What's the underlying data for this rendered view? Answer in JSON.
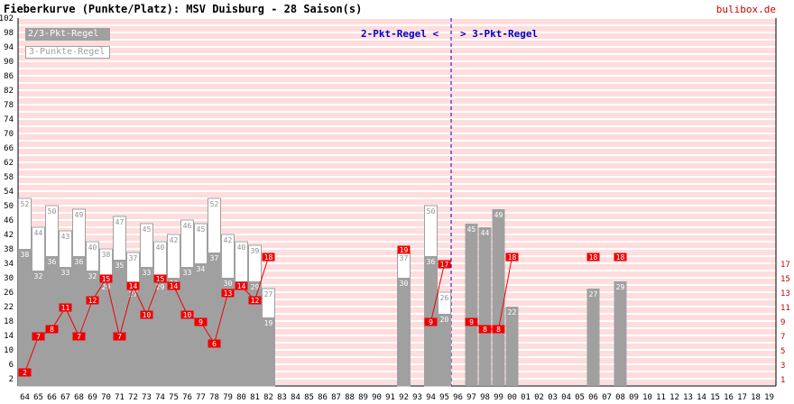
{
  "header": {
    "title": "Fieberkurve (Punkte/Platz): MSV Duisburg - 28 Saison(s)",
    "site": "bulibox.de"
  },
  "legend": {
    "pts23": "2/3-Pkt-Regel",
    "pts3": "3-Punkte-Regel"
  },
  "rule_labels": {
    "left": "2-Pkt-Regel <",
    "right": "> 3-Pkt-Regel"
  },
  "colors": {
    "bar_gray": "#a0a0a0",
    "place_red": "#ee0000",
    "rule_blue": "#0000cc",
    "stripe_pink": "#ffdddd"
  },
  "chart_data": {
    "type": "bar",
    "categories": [
      "64",
      "65",
      "66",
      "67",
      "68",
      "69",
      "70",
      "71",
      "72",
      "73",
      "74",
      "75",
      "76",
      "77",
      "78",
      "79",
      "80",
      "81",
      "82",
      "83",
      "84",
      "85",
      "86",
      "87",
      "88",
      "89",
      "90",
      "91",
      "92",
      "93",
      "94",
      "95",
      "96",
      "97",
      "98",
      "99",
      "00",
      "01",
      "02",
      "03",
      "04",
      "05",
      "06",
      "07",
      "08",
      "09",
      "10",
      "11",
      "12",
      "13",
      "14",
      "15",
      "16",
      "17",
      "18",
      "19"
    ],
    "series": [
      {
        "name": "2/3-Pkt-Regel",
        "values": [
          38,
          32,
          36,
          33,
          36,
          32,
          29,
          35,
          27,
          33,
          29,
          30,
          33,
          34,
          37,
          30,
          29,
          29,
          19,
          null,
          null,
          null,
          null,
          null,
          null,
          null,
          null,
          null,
          30,
          null,
          36,
          20,
          null,
          45,
          44,
          49,
          22,
          null,
          null,
          null,
          null,
          null,
          27,
          null,
          29,
          null,
          null,
          null,
          null,
          null,
          null,
          null,
          null,
          null,
          null,
          null
        ]
      },
      {
        "name": "3-Punkte-Regel",
        "values": [
          52,
          44,
          50,
          43,
          49,
          40,
          38,
          47,
          37,
          45,
          40,
          42,
          46,
          45,
          52,
          42,
          40,
          39,
          27,
          null,
          null,
          null,
          null,
          null,
          null,
          null,
          null,
          null,
          37,
          null,
          50,
          26,
          null,
          45,
          44,
          49,
          22,
          null,
          null,
          null,
          null,
          null,
          27,
          null,
          29,
          null,
          null,
          null,
          null,
          null,
          null,
          null,
          null,
          null,
          null,
          null
        ]
      }
    ],
    "places": [
      2,
      7,
      8,
      11,
      7,
      12,
      15,
      7,
      14,
      10,
      15,
      14,
      10,
      9,
      6,
      13,
      14,
      12,
      18,
      null,
      null,
      null,
      null,
      null,
      null,
      null,
      null,
      null,
      19,
      null,
      9,
      17,
      null,
      9,
      8,
      8,
      18,
      null,
      null,
      null,
      null,
      null,
      18,
      null,
      18,
      null,
      null,
      null,
      null,
      null,
      null,
      null,
      null,
      null,
      null,
      null
    ],
    "y_left": {
      "min": 0,
      "max": 102,
      "ticks": [
        "2",
        "6",
        "10",
        "14",
        "18",
        "22",
        "26",
        "30",
        "34",
        "38",
        "42",
        "46",
        "50",
        "54",
        "58",
        "62",
        "66",
        "70",
        "74",
        "78",
        "82",
        "86",
        "90",
        "94",
        "98",
        "102"
      ]
    },
    "y_right": {
      "min": 1,
      "max": 18,
      "ticks": [
        "1",
        "3",
        "5",
        "7",
        "9",
        "11",
        "13",
        "15",
        "17"
      ]
    },
    "rule_change_between": [
      "95",
      "96"
    ]
  }
}
